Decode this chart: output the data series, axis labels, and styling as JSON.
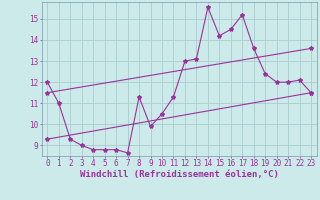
{
  "bg_color": "#cceaea",
  "grid_color": "#aacccc",
  "line_color": "#993399",
  "marker": "*",
  "markersize": 3,
  "xlabel": "Windchill (Refroidissement éolien,°C)",
  "xlabel_fontsize": 6.5,
  "xticks": [
    0,
    1,
    2,
    3,
    4,
    5,
    6,
    7,
    8,
    9,
    10,
    11,
    12,
    13,
    14,
    15,
    16,
    17,
    18,
    19,
    20,
    21,
    22,
    23
  ],
  "yticks": [
    9,
    10,
    11,
    12,
    13,
    14,
    15
  ],
  "ylim": [
    8.5,
    15.8
  ],
  "xlim": [
    -0.5,
    23.5
  ],
  "tick_fontsize": 5.5,
  "line1_x": [
    0,
    1,
    2,
    3,
    4,
    5,
    6,
    7,
    8,
    9,
    10,
    11,
    12,
    13,
    14,
    15,
    16,
    17,
    18,
    19,
    20,
    21,
    22,
    23
  ],
  "line1_y": [
    12.0,
    11.0,
    9.3,
    9.0,
    8.8,
    8.8,
    8.8,
    8.65,
    11.3,
    9.9,
    10.5,
    11.3,
    13.0,
    13.1,
    15.55,
    14.2,
    14.5,
    15.2,
    13.6,
    12.4,
    12.0,
    12.0,
    12.1,
    11.5
  ],
  "line2_x": [
    0,
    23
  ],
  "line2_y": [
    9.3,
    11.5
  ],
  "line3_x": [
    0,
    23
  ],
  "line3_y": [
    11.5,
    13.6
  ]
}
